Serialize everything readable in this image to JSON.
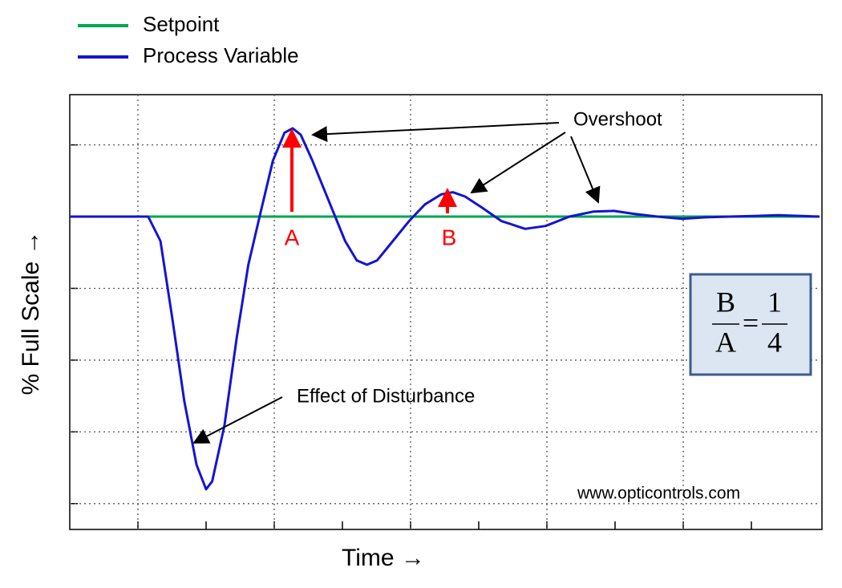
{
  "chart_data": {
    "type": "line",
    "xlabel": "Time →",
    "ylabel": "% Full Scale →",
    "x": [
      0,
      1.15,
      1.33,
      1.51,
      1.68,
      1.86,
      2.0,
      2.09,
      2.27,
      2.45,
      2.62,
      2.8,
      2.98,
      3.15,
      3.27,
      3.39,
      3.56,
      3.8,
      4.04,
      4.21,
      4.36,
      4.51,
      4.74,
      4.98,
      5.21,
      5.45,
      5.62,
      5.8,
      6.04,
      6.33,
      6.68,
      6.98,
      7.33,
      7.68,
      7.98,
      8.27,
      8.62,
      8.98,
      9.33,
      9.68,
      10.04,
      10.39,
      10.74,
      11
    ],
    "series": [
      {
        "name": "Setpoint",
        "color": "#00a650",
        "values": [
          0,
          0,
          0,
          0,
          0,
          0,
          0,
          0,
          0,
          0,
          0,
          0,
          0,
          0,
          0,
          0,
          0,
          0,
          0,
          0,
          0,
          0,
          0,
          0,
          0,
          0,
          0,
          0,
          0,
          0,
          0,
          0,
          0,
          0,
          0,
          0,
          0,
          0,
          0,
          0,
          0,
          0,
          0,
          0
        ]
      },
      {
        "name": "Process Variable",
        "color": "#1414d2",
        "values": [
          0,
          0,
          -0.34,
          -1.45,
          -2.57,
          -3.46,
          -3.8,
          -3.69,
          -2.91,
          -1.68,
          -0.67,
          0.06,
          0.78,
          1.17,
          1.23,
          1.14,
          0.78,
          0.22,
          -0.34,
          -0.61,
          -0.67,
          -0.61,
          -0.34,
          -0.06,
          0.17,
          0.31,
          0.34,
          0.28,
          0.13,
          -0.06,
          -0.17,
          -0.13,
          0,
          0.07,
          0.08,
          0.04,
          0,
          -0.03,
          -0.01,
          0,
          0.01,
          0.02,
          0.01,
          0
        ]
      }
    ],
    "xlim": [
      0,
      11
    ],
    "ylim": [
      -4.36,
      1.7
    ],
    "xticks": [
      1,
      2,
      3,
      4,
      5,
      6,
      7,
      8,
      9,
      10
    ],
    "xgrid": [
      1,
      3,
      5,
      7,
      9
    ],
    "yticks": [
      -4,
      -3,
      -2,
      -1,
      0,
      1
    ],
    "grid": true,
    "annotations": {
      "overshoot": "Overshoot",
      "a": "A",
      "b": "B",
      "disturbance": "Effect of Disturbance",
      "source": "www.opticontrols.com",
      "ratio": {
        "num_left": "B",
        "den_left": "A",
        "equals": "=",
        "num_right": "1",
        "den_right": "4"
      }
    }
  }
}
